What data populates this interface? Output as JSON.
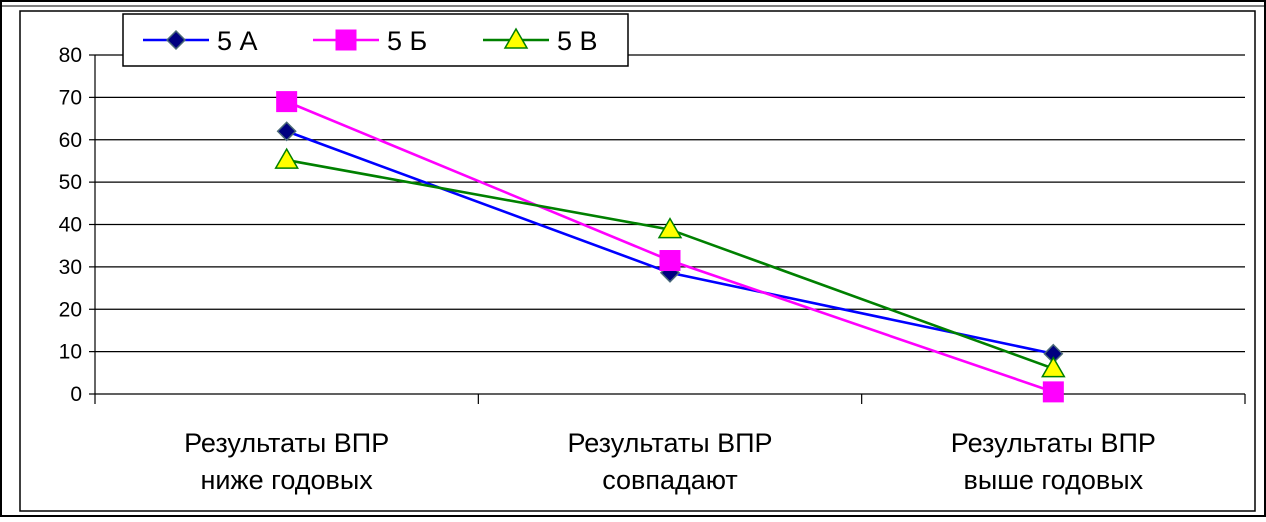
{
  "chart_data": {
    "type": "line",
    "title": "",
    "xlabel": "",
    "ylabel": "",
    "categories": [
      [
        "Результаты ВПР",
        "ниже годовых"
      ],
      [
        "Результаты ВПР",
        "совпадают"
      ],
      [
        "Результаты ВПР",
        "выше годовых"
      ]
    ],
    "ylim": [
      0,
      80
    ],
    "yticks": [
      0,
      10,
      20,
      30,
      40,
      50,
      60,
      70,
      80
    ],
    "grid": true,
    "legend_position": "top-left",
    "series": [
      {
        "name": "5 А",
        "values": [
          62,
          28.6,
          9.5
        ],
        "color": "#0000FF",
        "marker": "diamond",
        "marker_fill": "#000080"
      },
      {
        "name": "5 Б",
        "values": [
          69,
          31.5,
          0.5
        ],
        "color": "#FF00FF",
        "marker": "square",
        "marker_fill": "#FF00FF"
      },
      {
        "name": "5 В",
        "values": [
          55.2,
          38.8,
          6
        ],
        "color": "#008000",
        "marker": "triangle",
        "marker_fill": "#FFFF00"
      }
    ]
  }
}
